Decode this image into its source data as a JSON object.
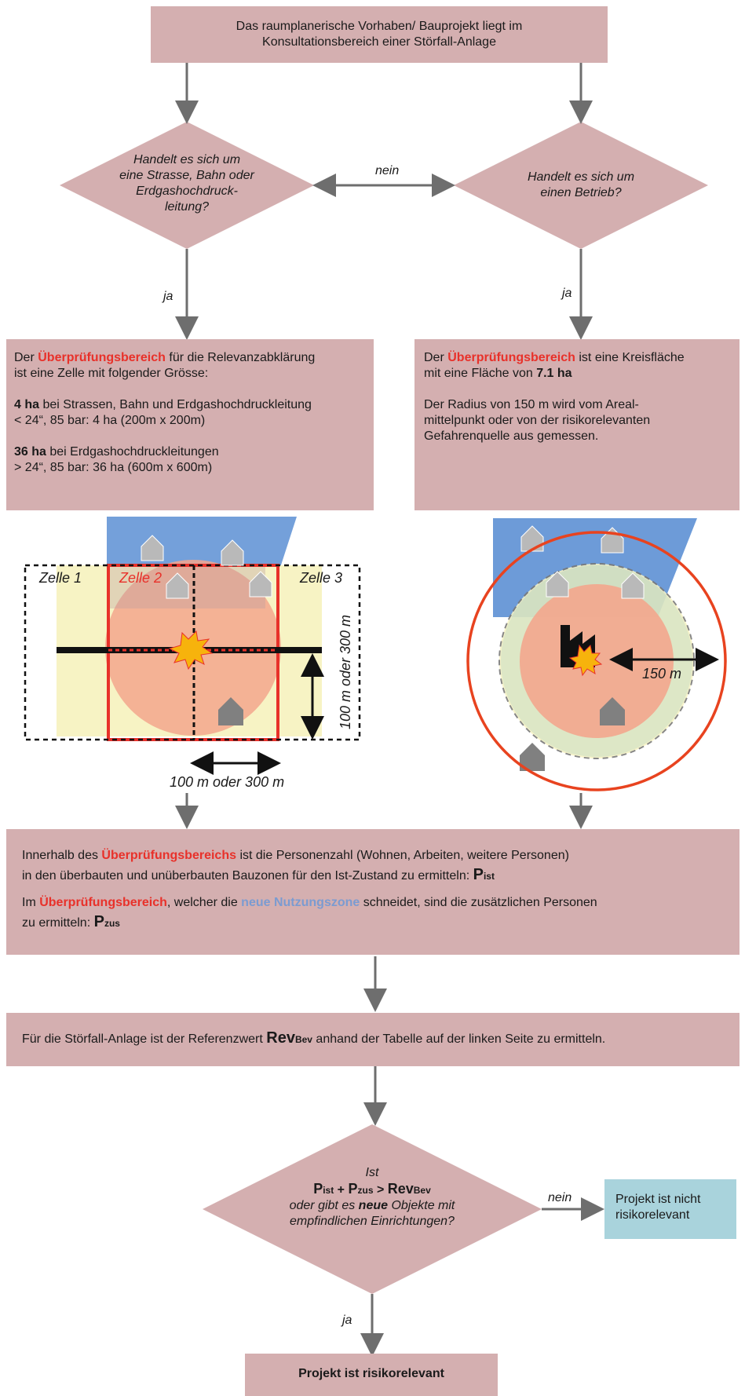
{
  "colors": {
    "box": "#d4afb0",
    "arrow": "#6e6e6e",
    "red": "#e8312a",
    "blue": "#7b9bd1",
    "result_box": "#a9d3dc"
  },
  "start": {
    "line1": "Das raumplanerische Vorhaben/ Bauprojekt liegt im",
    "line2": "Konsultationsbereich einer Störfall-Anlage"
  },
  "decision_left": {
    "l1": "Handelt es sich um",
    "l2": "eine Strasse, Bahn oder",
    "l3": "Erdgashochdruck-",
    "l4": "leitung?"
  },
  "decision_right": {
    "l1": "Handelt es sich um",
    "l2": "einen Betrieb?"
  },
  "labels": {
    "nein": "nein",
    "ja": "ja"
  },
  "left_box": {
    "p1a": "Der ",
    "p1b": "Überprüfungsbereich",
    "p1c": " für die Relevanzabklärung",
    "p1d": "ist eine Zelle mit folgender Grösse:",
    "p2a": "4 ha",
    "p2b": " bei Strassen, Bahn und Erdgashochdruckleitung",
    "p2c": " < 24“, 85 bar: 4 ha (200m x 200m)",
    "p3a": "36 ha",
    "p3b": " bei Erdgashochdruckleitungen",
    "p3c": " > 24“, 85 bar: 36 ha (600m x 600m)"
  },
  "right_box": {
    "p1a": "Der ",
    "p1b": "Überprüfungsbereich",
    "p1c": " ist eine Kreisfläche",
    "p1d": "mit eine Fläche von ",
    "p1e": "7.1 ha",
    "p2a": "Der Radius von 150 m wird vom Areal-",
    "p2b": "mittelpunkt oder von der risikorelevanten",
    "p2c": "Gefahrenquelle aus gemessen."
  },
  "left_figure": {
    "zelle1": "Zelle 1",
    "zelle2": "Zelle 2",
    "zelle3": "Zelle 3",
    "dim_v": "100 m oder 300 m",
    "dim_h": "100 m oder 300 m"
  },
  "right_figure": {
    "radius": "150 m"
  },
  "persons_box": {
    "l1a": "Innerhalb des ",
    "l1b": "Überprüfungsbereichs",
    "l1c": " ist die Personenzahl (Wohnen, Arbeiten, weitere Personen)",
    "l2a": "in den überbauten und unüberbauten Bauzonen für den Ist-Zustand zu ermitteln: ",
    "l2b": "P",
    "l2c": "ist",
    "l3a": "Im ",
    "l3b": "Überprüfungsbereich",
    "l3c": ", welcher die ",
    "l3d": "neue Nutzungszone",
    "l3e": " schneidet, sind die zusätzlichen Personen",
    "l4a": "zu ermitteln: ",
    "l4b": "P",
    "l4c": "zus"
  },
  "rev_box": {
    "a": "Für die Störfall-Anlage ist der Referenzwert ",
    "b": "Rev",
    "c": "Bev",
    "d": " anhand der Tabelle auf der linken Seite zu ermitteln."
  },
  "final_decision": {
    "l1": "Ist",
    "p1": "P",
    "ist": "ist",
    "plus": " + ",
    "p2": "P",
    "zus": "zus",
    "gt": " > ",
    "rev": "Rev",
    "bev": "Bev",
    "l3": "oder gibt es ",
    "l3b": "neue",
    "l3c": " Objekte mit",
    "l4": "empfindlichen Einrichtungen?"
  },
  "not_relevant": {
    "l1": "Projekt ist nicht",
    "l2": "risikorelevant"
  },
  "relevant": "Projekt ist risikorelevant"
}
